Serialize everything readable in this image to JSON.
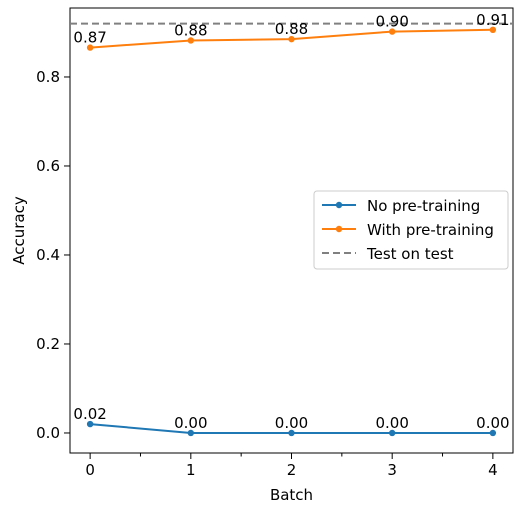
{
  "chart_data": {
    "type": "line",
    "xlabel": "Batch",
    "ylabel": "Accuracy",
    "x": [
      0,
      1,
      2,
      3,
      4
    ],
    "xticks": [
      "0",
      "1",
      "2",
      "3",
      "4"
    ],
    "yticks": [
      "0.0",
      "0.2",
      "0.4",
      "0.6",
      "0.8"
    ],
    "ytick_values": [
      0.0,
      0.2,
      0.4,
      0.6,
      0.8
    ],
    "xlim": [
      -0.2,
      4.2
    ],
    "ylim": [
      -0.045,
      0.955
    ],
    "grid": false,
    "legend_position": "center-right",
    "series": [
      {
        "name": "No pre-training",
        "color": "#1f77b4",
        "values": [
          0.02,
          0.0,
          0.0,
          0.0,
          0.0
        ],
        "labels": [
          "0.02",
          "0.00",
          "0.00",
          "0.00",
          "0.00"
        ]
      },
      {
        "name": "With pre-training",
        "color": "#ff7f0e",
        "values": [
          0.866,
          0.882,
          0.885,
          0.902,
          0.906
        ],
        "labels": [
          "0.87",
          "0.88",
          "0.88",
          "0.90",
          "0.91"
        ]
      }
    ],
    "reference_line": {
      "name": "Test on test",
      "value": 0.92,
      "color": "#808080",
      "style": "dashed"
    }
  }
}
